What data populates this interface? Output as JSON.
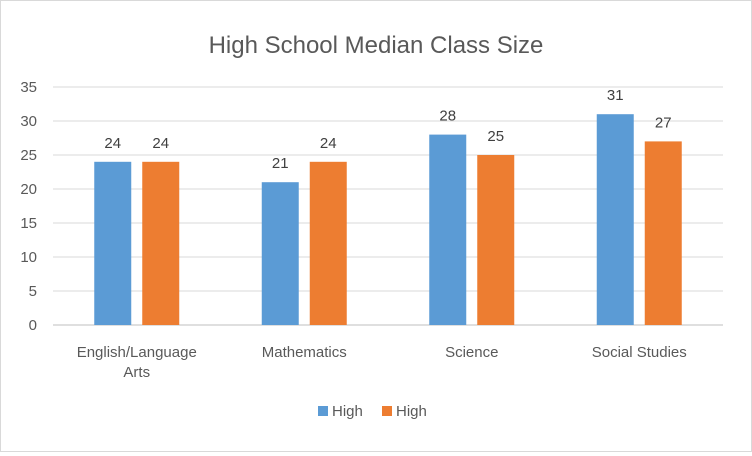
{
  "chart_data": {
    "type": "bar",
    "title": "High School Median Class Size",
    "categories": [
      [
        "English/Language",
        "Arts"
      ],
      [
        "Mathematics"
      ],
      [
        "Science"
      ],
      [
        "Social Studies"
      ]
    ],
    "series": [
      {
        "name": "High",
        "color": "#5b9bd5",
        "values": [
          24,
          21,
          28,
          31
        ]
      },
      {
        "name": "High",
        "color": "#ed7d31",
        "values": [
          24,
          24,
          25,
          27
        ]
      }
    ],
    "ylim": [
      0,
      35
    ],
    "yticks": [
      "0",
      "5",
      "10",
      "15",
      "20",
      "25",
      "30",
      "35"
    ],
    "grid": true,
    "legend": "bottom"
  }
}
